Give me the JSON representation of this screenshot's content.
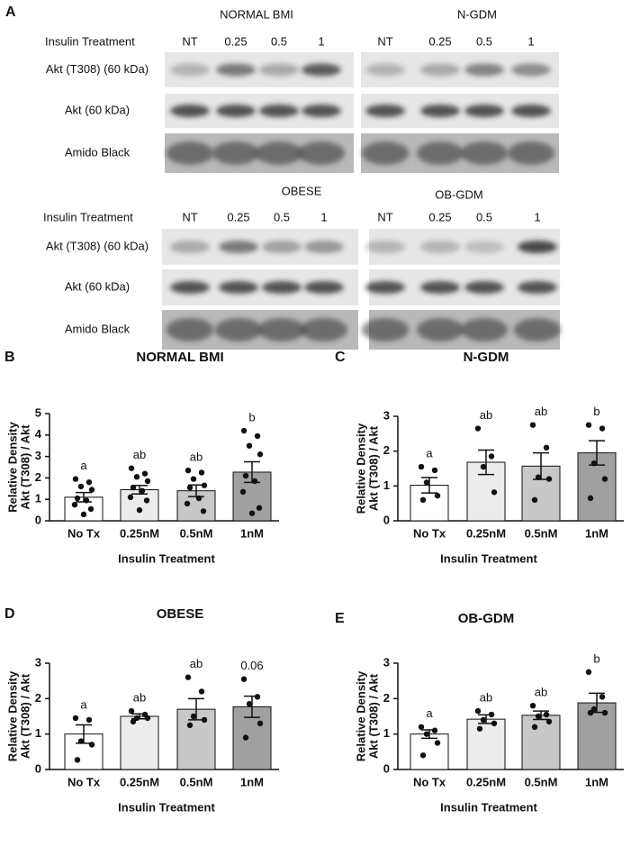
{
  "panel_a": {
    "label": "A",
    "insulin_label": "Insulin Treatment",
    "rows": [
      "Akt (T308) (60 kDa)",
      "Akt (60 kDa)",
      "Amido Black"
    ],
    "groups": [
      {
        "title": "NORMAL BMI",
        "lanes": [
          "NT",
          "0.25",
          "0.5",
          "1"
        ]
      },
      {
        "title": "N-GDM",
        "lanes": [
          "NT",
          "0.25",
          "0.5",
          "1"
        ]
      },
      {
        "title": "OBESE",
        "lanes": [
          "NT",
          "0.25",
          "0.5",
          "1"
        ]
      },
      {
        "title": "OB-GDM",
        "lanes": [
          "NT",
          "0.25",
          "0.5",
          "1"
        ]
      }
    ]
  },
  "chart_data": [
    {
      "type": "bar",
      "panel_label": "B",
      "title": "NORMAL BMI",
      "x_label": "Insulin Treatment",
      "y_label": [
        "Relative Density",
        "Akt (T308) / Akt"
      ],
      "categories": [
        "No Tx",
        "0.25nM",
        "0.5nM",
        "1nM"
      ],
      "colors": [
        "#ffffff",
        "#ececec",
        "#c8c8c8",
        "#a0a0a0"
      ],
      "values": [
        1.1,
        1.45,
        1.4,
        2.27
      ],
      "errors": [
        0.22,
        0.2,
        0.27,
        0.48
      ],
      "points": [
        [
          1.95,
          1.8,
          1.6,
          1.45,
          1.05,
          0.95,
          0.75,
          0.55,
          0.3
        ],
        [
          2.45,
          2.2,
          2.05,
          1.85,
          1.55,
          1.4,
          1.1,
          0.95,
          0.5
        ],
        [
          2.35,
          2.25,
          1.95,
          1.65,
          1.55,
          1.05,
          0.8,
          0.45
        ],
        [
          4.2,
          3.95,
          3.5,
          3.1,
          2.1,
          1.85,
          1.35,
          0.6,
          0.35
        ]
      ],
      "annotations": [
        "a",
        "ab",
        "ab",
        "b"
      ],
      "ylim": [
        0,
        5
      ],
      "yticks": [
        0,
        1,
        2,
        3,
        4,
        5
      ]
    },
    {
      "type": "bar",
      "panel_label": "C",
      "title": "N-GDM",
      "x_label": "Insulin Treatment",
      "y_label": [
        "Relative Density",
        "Akt (T308) / Akt"
      ],
      "categories": [
        "No Tx",
        "0.25nM",
        "0.5nM",
        "1nM"
      ],
      "colors": [
        "#ffffff",
        "#ececec",
        "#c8c8c8",
        "#a0a0a0"
      ],
      "values": [
        1.02,
        1.68,
        1.57,
        1.95
      ],
      "errors": [
        0.22,
        0.35,
        0.38,
        0.35
      ],
      "points": [
        [
          1.55,
          1.45,
          1.1,
          0.72,
          0.6
        ],
        [
          2.65,
          1.85,
          1.55,
          0.82
        ],
        [
          2.75,
          2.1,
          1.25,
          1.2,
          0.6
        ],
        [
          2.75,
          2.65,
          1.65,
          1.2,
          0.65
        ]
      ],
      "annotations": [
        "a",
        "ab",
        "ab",
        "b"
      ],
      "ylim": [
        0,
        3
      ],
      "yticks": [
        0,
        1,
        2,
        3
      ]
    },
    {
      "type": "bar",
      "panel_label": "D",
      "title": "OBESE",
      "x_label": "Insulin Treatment",
      "y_label": [
        "Relative Density",
        "Akt (T308) / Akt"
      ],
      "categories": [
        "No Tx",
        "0.25nM",
        "0.5nM",
        "1nM"
      ],
      "colors": [
        "#ffffff",
        "#ececec",
        "#c8c8c8",
        "#a0a0a0"
      ],
      "values": [
        1.0,
        1.5,
        1.7,
        1.77
      ],
      "errors": [
        0.26,
        0.07,
        0.3,
        0.3
      ],
      "points": [
        [
          1.45,
          1.4,
          0.8,
          0.7,
          0.27
        ],
        [
          1.65,
          1.55,
          1.45,
          1.45,
          1.35
        ],
        [
          2.6,
          2.2,
          1.5,
          1.4,
          1.25
        ],
        [
          2.55,
          2.05,
          1.85,
          1.3,
          0.9
        ]
      ],
      "annotations": [
        "a",
        "ab",
        "ab",
        "0.06"
      ],
      "ylim": [
        0,
        3
      ],
      "yticks": [
        0,
        1,
        2,
        3
      ]
    },
    {
      "type": "bar",
      "panel_label": "E",
      "title": "OB-GDM",
      "x_label": "Insulin Treatment",
      "y_label": [
        "Relative Density",
        "Akt (T308) / Akt"
      ],
      "categories": [
        "No Tx",
        "0.25nM",
        "0.5nM",
        "1nM"
      ],
      "colors": [
        "#ffffff",
        "#ececec",
        "#c8c8c8",
        "#a0a0a0"
      ],
      "values": [
        1.0,
        1.42,
        1.53,
        1.88
      ],
      "errors": [
        0.12,
        0.12,
        0.12,
        0.27
      ],
      "points": [
        [
          1.2,
          1.1,
          1.0,
          0.75,
          0.4
        ],
        [
          1.65,
          1.55,
          1.4,
          1.3,
          1.15
        ],
        [
          1.8,
          1.55,
          1.5,
          1.35,
          1.2
        ],
        [
          2.75,
          2.05,
          1.7,
          1.6,
          1.6
        ]
      ],
      "annotations": [
        "a",
        "ab",
        "ab",
        "b"
      ],
      "ylim": [
        0,
        3
      ],
      "yticks": [
        0,
        1,
        2,
        3
      ]
    }
  ]
}
